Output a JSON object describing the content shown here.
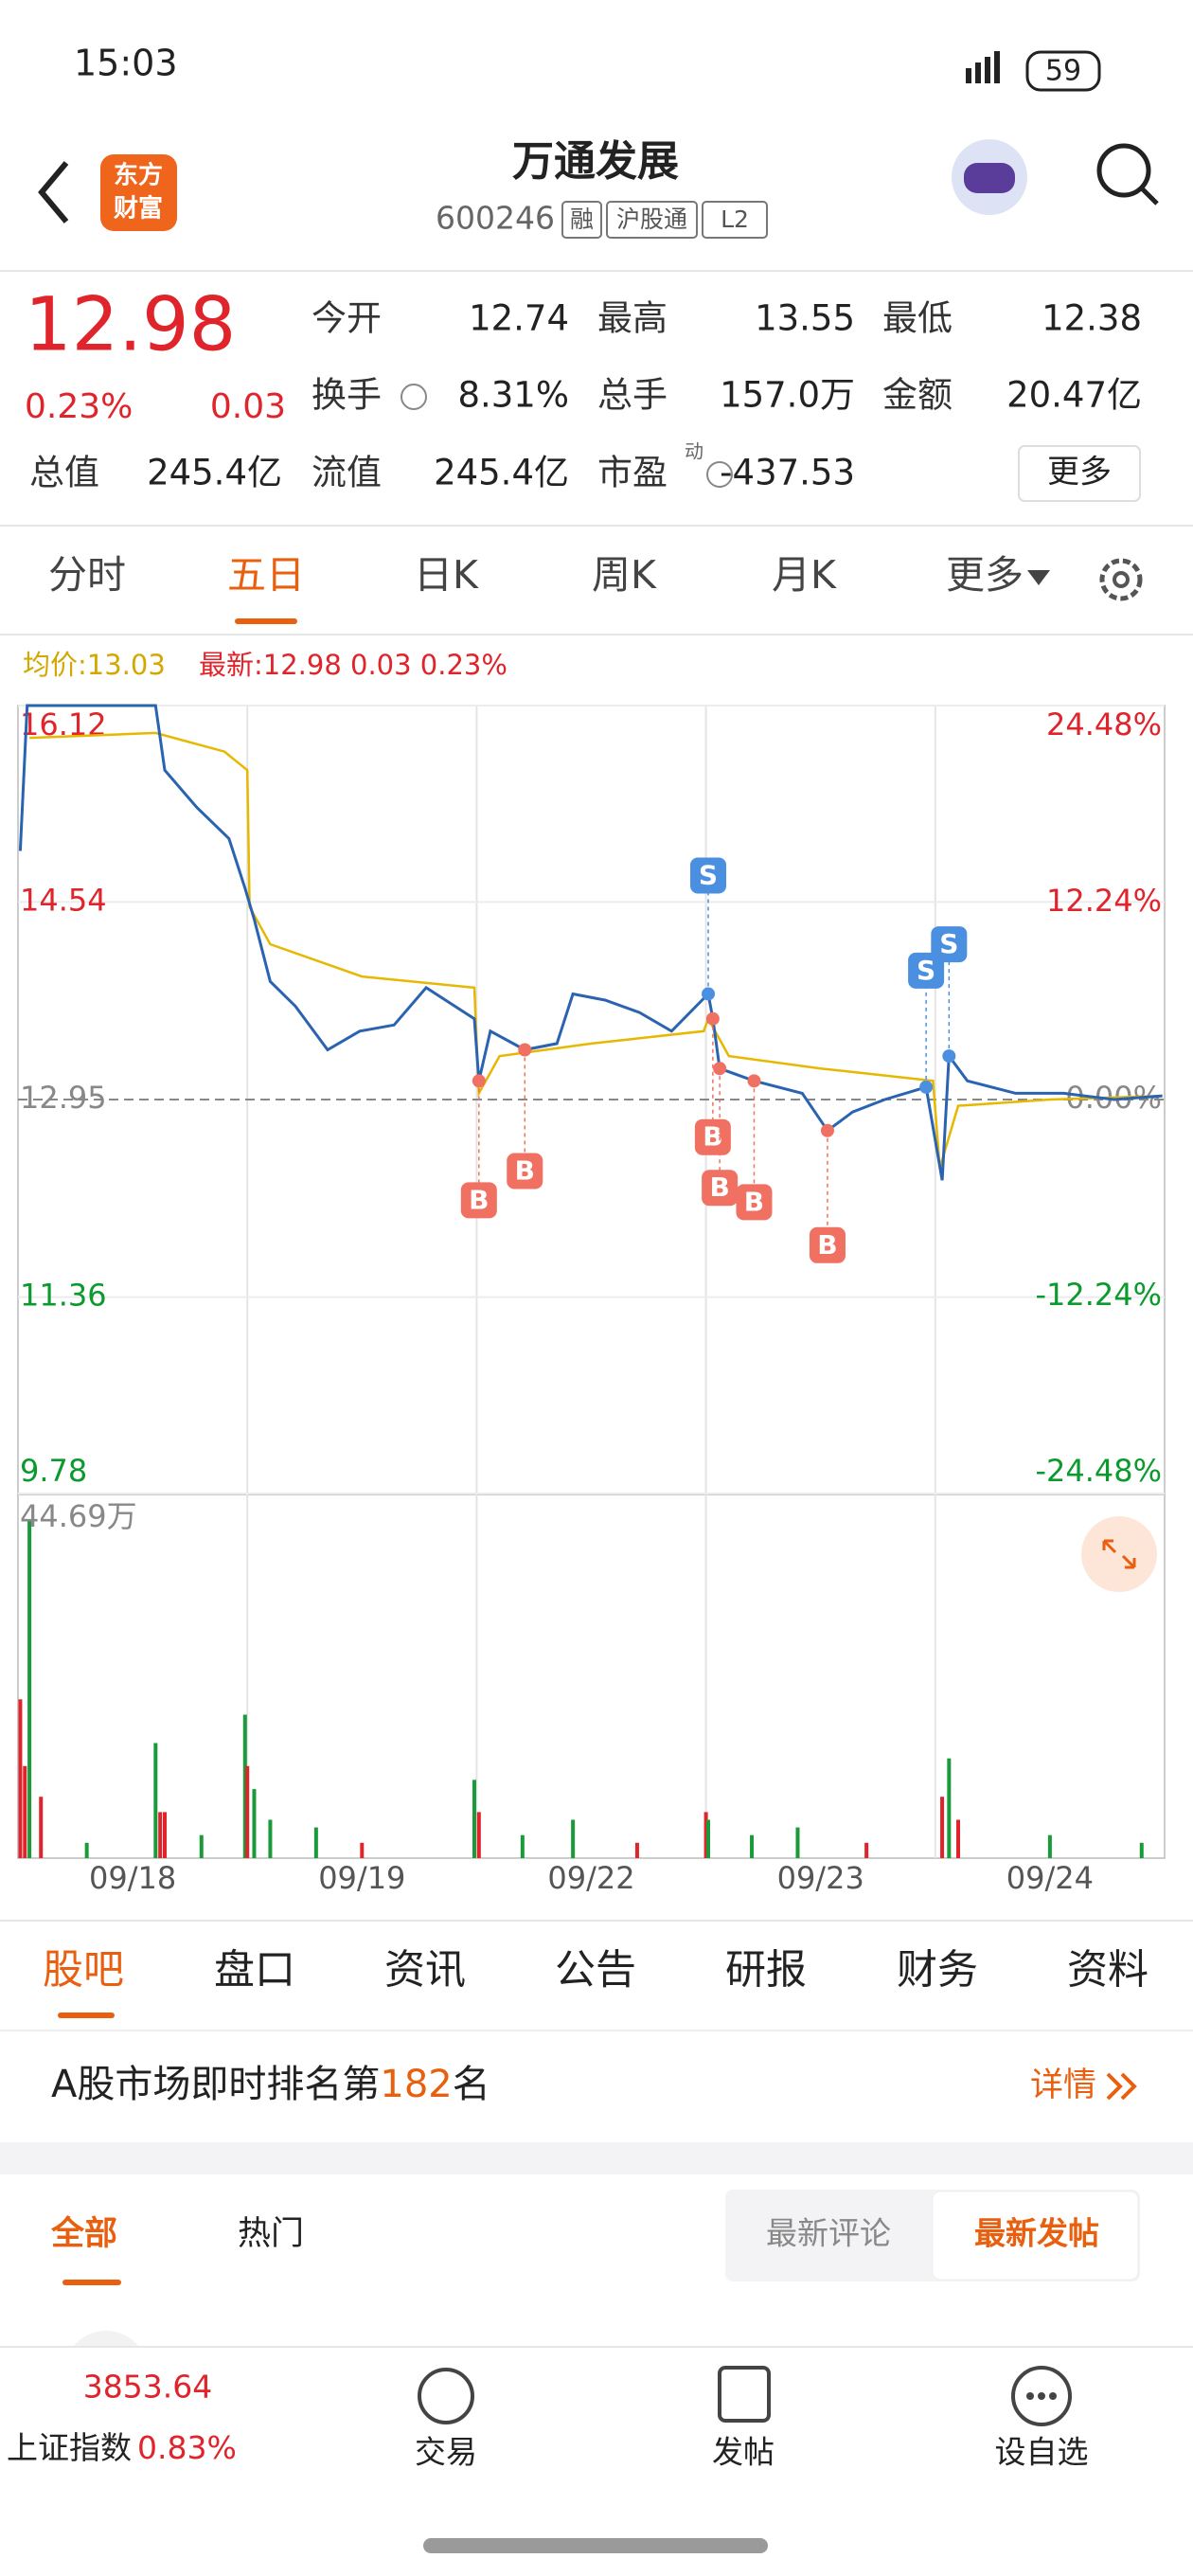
{
  "status": {
    "time": "15:03",
    "battery": "59"
  },
  "header": {
    "logo": [
      "东方",
      "财富"
    ],
    "title": "万通发展",
    "code": "600246",
    "badges": [
      "融",
      "沪股通",
      "L2"
    ]
  },
  "quote": {
    "price": "12.98",
    "change_pct": "0.23%",
    "change": "0.03",
    "more": "更多",
    "pe_superscript": "动",
    "fields": [
      {
        "label": "今开",
        "value": "12.74"
      },
      {
        "label": "最高",
        "value": "13.55"
      },
      {
        "label": "最低",
        "value": "12.38"
      },
      {
        "label": "换手",
        "value": "8.31%"
      },
      {
        "label": "总手",
        "value": "157.0万"
      },
      {
        "label": "金额",
        "value": "20.47亿"
      },
      {
        "label": "总值",
        "value": "245.4亿"
      },
      {
        "label": "流值",
        "value": "245.4亿"
      },
      {
        "label": "市盈",
        "value": "-437.53"
      }
    ]
  },
  "tabs": [
    "分时",
    "五日",
    "日K",
    "周K",
    "月K",
    "更多"
  ],
  "chart_data": {
    "type": "line",
    "avg_text": "均价:13.03",
    "latest_text": "最新:12.98 0.03 0.23%",
    "categories": [
      "09/18",
      "09/19",
      "09/22",
      "09/23",
      "09/24"
    ],
    "xlim": [
      0,
      5
    ],
    "ylim": [
      9.78,
      16.12
    ],
    "yticks": [
      9.78,
      11.36,
      12.95,
      14.54,
      16.12
    ],
    "y2lim": [
      -24.48,
      24.48
    ],
    "y2ticks": [
      {
        "value": -24.48,
        "label": "-24.48%"
      },
      {
        "value": -12.24,
        "label": "-12.24%"
      },
      {
        "value": 0,
        "label": "0.00%"
      },
      {
        "value": 12.24,
        "label": "12.24%"
      },
      {
        "value": 24.48,
        "label": "24.48%"
      }
    ],
    "series": [
      {
        "name": "最新",
        "color": "#2a63b0",
        "x": [
          0.01,
          0.04,
          0.6,
          0.64,
          0.78,
          0.92,
          0.99,
          1.03,
          1.1,
          1.21,
          1.35,
          1.49,
          1.64,
          1.78,
          1.99,
          2.01,
          2.06,
          2.21,
          2.35,
          2.42,
          2.56,
          2.71,
          2.85,
          3.01,
          3.03,
          3.06,
          3.21,
          3.42,
          3.53,
          3.64,
          3.78,
          3.96,
          4.03,
          4.06,
          4.14,
          4.35,
          4.56,
          4.78,
          4.99
        ],
        "values": [
          14.95,
          16.12,
          16.12,
          15.6,
          15.3,
          15.05,
          14.65,
          14.4,
          13.9,
          13.7,
          13.35,
          13.5,
          13.55,
          13.85,
          13.6,
          13.1,
          13.5,
          13.35,
          13.4,
          13.8,
          13.75,
          13.65,
          13.5,
          13.8,
          13.6,
          13.2,
          13.1,
          13.0,
          12.7,
          12.85,
          12.95,
          13.05,
          12.3,
          13.3,
          13.1,
          13.0,
          13.0,
          12.95,
          12.98
        ]
      },
      {
        "name": "均价",
        "color": "#e6b800",
        "x": [
          0.05,
          0.6,
          0.9,
          1.0,
          1.01,
          1.1,
          1.5,
          1.99,
          2.01,
          2.1,
          2.5,
          2.99,
          3.01,
          3.1,
          3.5,
          3.99,
          4.02,
          4.1,
          4.5,
          4.99
        ],
        "values": [
          15.86,
          15.9,
          15.75,
          15.6,
          14.5,
          14.2,
          13.94,
          13.85,
          13.0,
          13.3,
          13.4,
          13.5,
          13.6,
          13.3,
          13.2,
          13.1,
          12.4,
          12.9,
          12.95,
          12.98
        ]
      }
    ],
    "markers": [
      {
        "label": "S",
        "x": 3.01,
        "value": 13.8
      },
      {
        "label": "B",
        "x": 2.01,
        "value": 13.1
      },
      {
        "label": "B",
        "x": 2.21,
        "value": 13.35
      },
      {
        "label": "B",
        "x": 3.03,
        "value": 13.6
      },
      {
        "label": "B",
        "x": 3.06,
        "value": 13.2
      },
      {
        "label": "B",
        "x": 3.21,
        "value": 13.1
      },
      {
        "label": "B",
        "x": 3.53,
        "value": 12.7
      },
      {
        "label": "S",
        "x": 3.96,
        "value": 13.05
      },
      {
        "label": "S",
        "x": 4.06,
        "value": 13.3
      }
    ],
    "volume": {
      "max_label": "44.69万",
      "ylim": [
        0,
        44.69
      ],
      "x": [
        0.01,
        0.03,
        0.05,
        0.1,
        0.3,
        0.6,
        0.62,
        0.64,
        0.8,
        0.99,
        1.0,
        1.03,
        1.1,
        1.3,
        1.5,
        1.99,
        2.01,
        2.2,
        2.42,
        2.7,
        3.0,
        3.01,
        3.2,
        3.4,
        3.7,
        4.03,
        4.06,
        4.1,
        4.5,
        4.9
      ],
      "values": [
        20.7,
        12,
        44,
        8,
        2,
        15,
        6,
        6,
        3,
        18.7,
        12,
        9,
        5,
        4,
        2,
        10.2,
        6,
        3,
        5,
        2,
        6,
        5,
        3,
        4,
        2,
        8,
        13,
        5,
        3,
        2
      ],
      "colors": [
        "#e0242b",
        "#e0242b",
        "#1a9a3a",
        "#e0242b",
        "#1a9a3a",
        "#1a9a3a",
        "#e0242b",
        "#e0242b",
        "#1a9a3a",
        "#1a9a3a",
        "#e0242b",
        "#1a9a3a",
        "#1a9a3a",
        "#1a9a3a",
        "#e0242b",
        "#1a9a3a",
        "#e0242b",
        "#1a9a3a",
        "#1a9a3a",
        "#e0242b",
        "#e0242b",
        "#1a9a3a",
        "#1a9a3a",
        "#1a9a3a",
        "#e0242b",
        "#e0242b",
        "#1a9a3a",
        "#e0242b",
        "#1a9a3a",
        "#1a9a3a"
      ]
    }
  },
  "bottom_tabs": [
    "股吧",
    "盘口",
    "资讯",
    "公告",
    "研报",
    "财务",
    "资料"
  ],
  "rank": {
    "prefix": "A股市场即时排名第",
    "number": "182",
    "suffix": "名",
    "detail": "详情"
  },
  "feed_tabs": [
    "全部",
    "热门",
    "最新评论",
    "最新发帖"
  ],
  "nav": {
    "index_value": "3853.64",
    "index_name": "上证指数",
    "index_change": "0.83%",
    "items": [
      "交易",
      "发帖",
      "设自选"
    ]
  }
}
